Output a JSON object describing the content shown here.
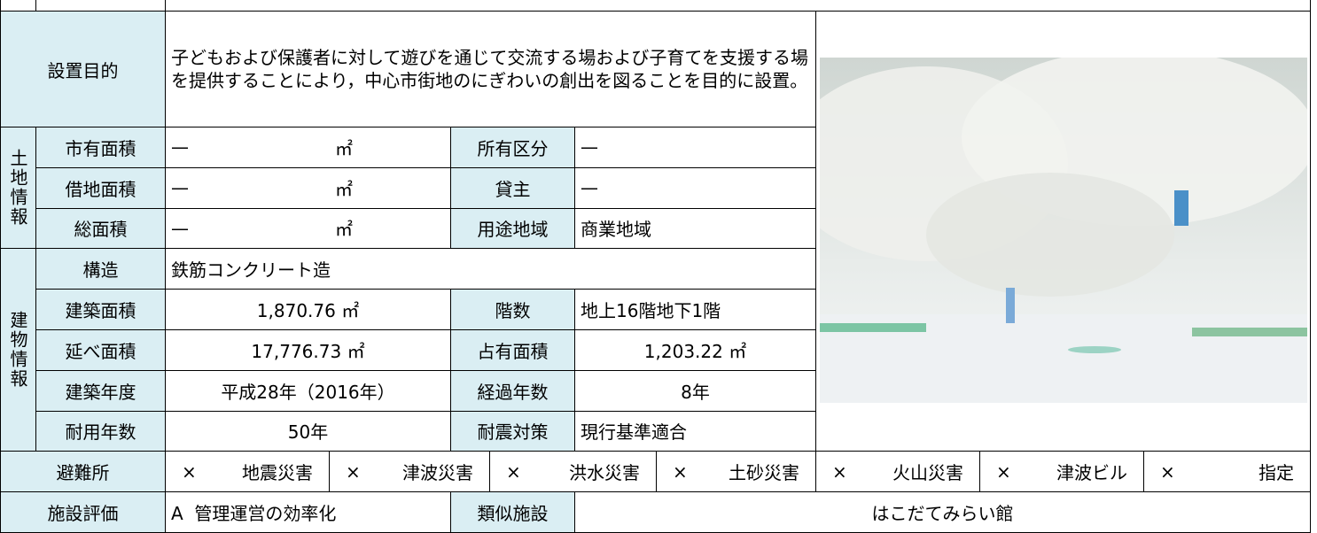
{
  "purpose": {
    "label": "設置目的",
    "text": "子どもおよび保護者に対して遊びを通じて交流する場および子育てを支援する場を提供することにより，中心市街地のにぎわいの創出を図ることを目的に設置。"
  },
  "land": {
    "label": "土地情報",
    "rows": [
      {
        "label": "市有面積",
        "value": "—",
        "unit": "㎡",
        "label2": "所有区分",
        "value2": "—"
      },
      {
        "label": "借地面積",
        "value": "—",
        "unit": "㎡",
        "label2": "貸主",
        "value2": "—"
      },
      {
        "label": "総面積",
        "value": "—",
        "unit": "㎡",
        "label2": "用途地域",
        "value2": "商業地域"
      }
    ]
  },
  "building": {
    "label": "建物情報",
    "structure": {
      "label": "構造",
      "value": "鉄筋コンクリート造"
    },
    "rows": [
      {
        "label": "建築面積",
        "value": "1,870.76 ㎡",
        "label2": "階数",
        "value2": "地上16階地下1階"
      },
      {
        "label": "延べ面積",
        "value": "17,776.73 ㎡",
        "label2": "占有面積",
        "value2": "1,203.22 ㎡"
      },
      {
        "label": "建築年度",
        "value": "平成28年（2016年）",
        "label2": "経過年数",
        "value2": "8年"
      },
      {
        "label": "耐用年数",
        "value": "50年",
        "label2": "耐震対策",
        "value2": "現行基準適合"
      }
    ]
  },
  "shelter": {
    "label": "避難所",
    "items": [
      {
        "mark": "×",
        "name": "地震災害"
      },
      {
        "mark": "×",
        "name": "津波災害"
      },
      {
        "mark": "×",
        "name": "洪水災害"
      },
      {
        "mark": "×",
        "name": "土砂災害"
      },
      {
        "mark": "×",
        "name": "火山災害"
      },
      {
        "mark": "×",
        "name": "津波ビル"
      },
      {
        "mark": "×",
        "name": "指定"
      }
    ]
  },
  "evaluation": {
    "label": "施設評価",
    "value": "A  管理運営の効率化",
    "label2": "類似施設",
    "value2": "はこだてみらい館"
  }
}
